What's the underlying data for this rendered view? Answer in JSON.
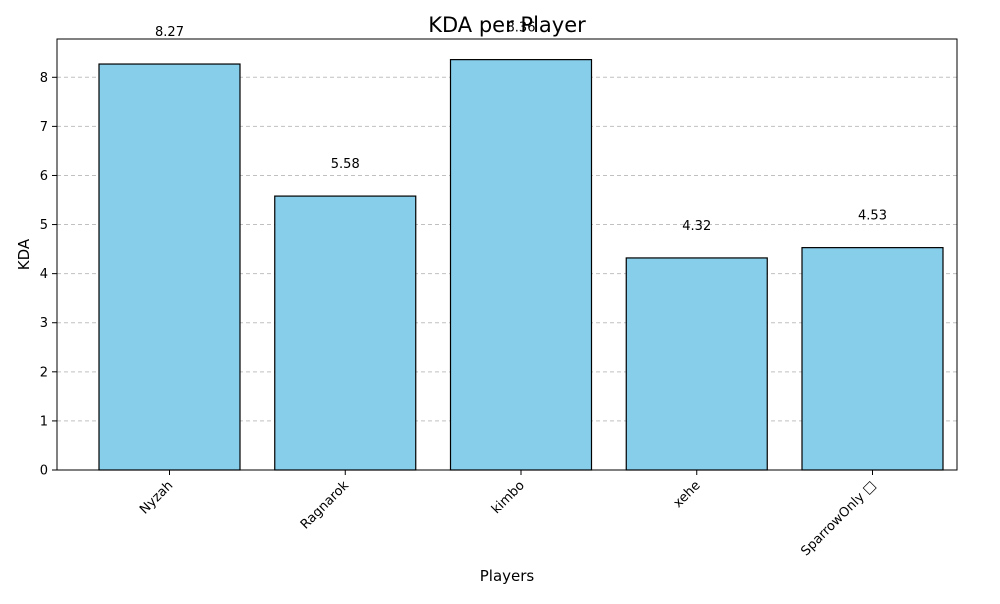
{
  "chart_data": {
    "type": "bar",
    "title": "KDA per Player",
    "xlabel": "Players",
    "ylabel": "KDA",
    "categories": [
      "Nyzah",
      "Ragnarok",
      "kimbo",
      "xehe",
      "SparrowOnly □"
    ],
    "values": [
      8.27,
      5.58,
      8.36,
      4.32,
      4.53
    ],
    "data_labels": [
      "8.27",
      "5.58",
      "8.36",
      "4.32",
      "4.53"
    ],
    "ylim": [
      0,
      8.78
    ],
    "yticks": [
      0,
      1,
      2,
      3,
      4,
      5,
      6,
      7,
      8
    ],
    "ytick_labels": [
      "0",
      "1",
      "2",
      "3",
      "4",
      "5",
      "6",
      "7",
      "8"
    ],
    "grid": "y-dashed",
    "xtick_rotation": 45,
    "colors": {
      "bar_fill": "#87CEEB",
      "bar_edge": "#000000",
      "grid": "#c0c0c0"
    }
  }
}
